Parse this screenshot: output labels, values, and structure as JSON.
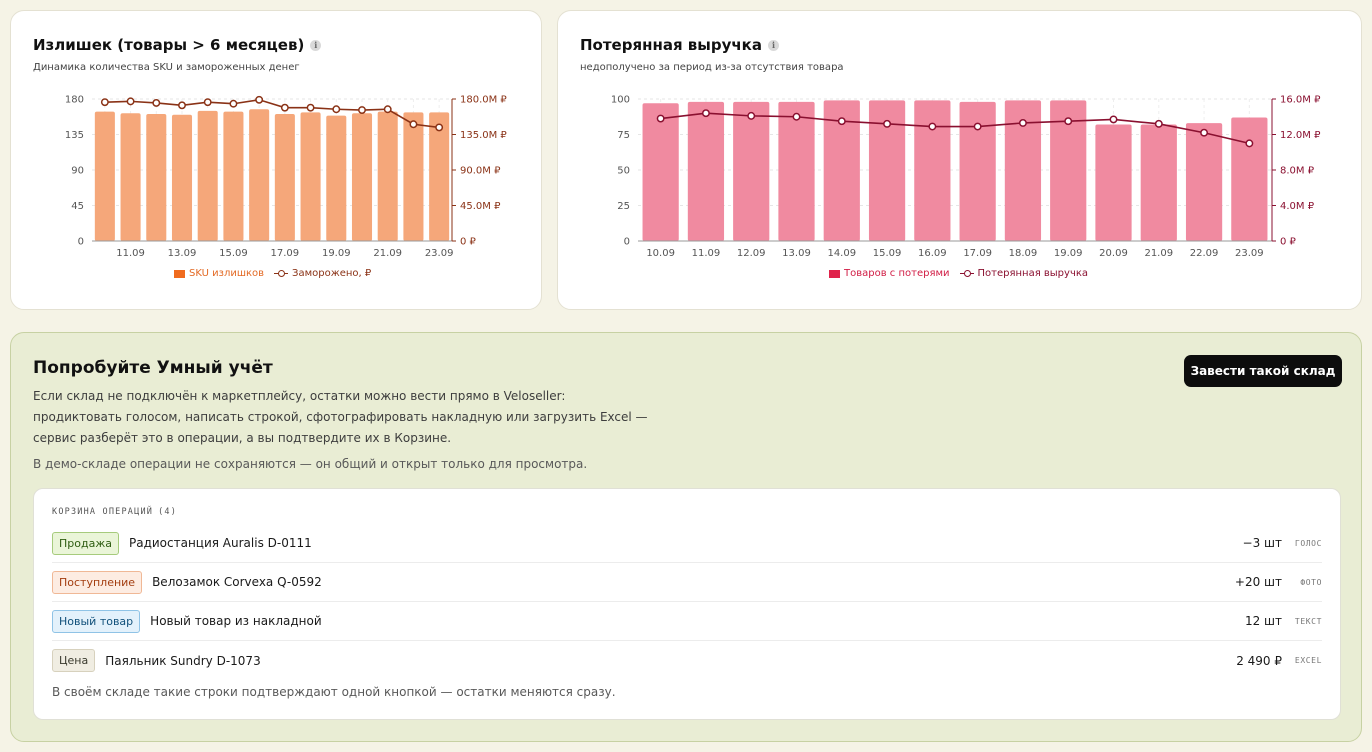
{
  "surplus_card": {
    "title": "Излишек (товары > 6 месяцев)",
    "subtitle": "Динамика количества SKU и замороженных денег",
    "legend_bar": "SKU излишков",
    "legend_line": "Заморожено, ₽",
    "info_icon": "i"
  },
  "lost_card": {
    "title": "Потерянная выручка",
    "subtitle": "недополучено за период из-за отсутствия товара",
    "legend_bar": "Товаров с потерями",
    "legend_line": "Потерянная выручка",
    "info_icon": "i"
  },
  "chart_data": [
    {
      "type": "bar",
      "title": "Излишек (товары > 6 месяцев)",
      "bar_color": "#f5a77a",
      "line_color": "#8a3216",
      "x_tick_labels": [
        "11.09",
        "13.09",
        "15.09",
        "17.09",
        "19.09",
        "21.09",
        "23.09"
      ],
      "series": [
        {
          "name": "SKU излишков",
          "type": "bar",
          "axis": "left",
          "values": [
            164,
            162,
            161,
            160,
            165,
            164,
            167,
            161,
            163,
            159,
            162,
            164,
            163,
            163
          ]
        },
        {
          "name": "Заморожено, ₽",
          "type": "line",
          "axis": "right",
          "values": [
            176,
            177,
            175,
            172,
            176,
            174,
            179,
            169,
            169,
            167,
            166,
            167,
            148,
            144
          ]
        }
      ],
      "y_left": {
        "ticks": [
          "0",
          "45",
          "90",
          "135",
          "180"
        ],
        "range": [
          0,
          180
        ]
      },
      "y_right": {
        "ticks": [
          "0 ₽",
          "45.0M ₽",
          "90.0M ₽",
          "135.0M ₽",
          "180.0M ₽"
        ],
        "range": [
          0,
          180
        ],
        "unit": "M ₽"
      },
      "grid": true,
      "legend": "bottom"
    },
    {
      "type": "bar",
      "title": "Потерянная выручка",
      "bar_color": "#f08aa0",
      "line_color": "#8a1030",
      "x_tick_labels": [
        "10.09",
        "11.09",
        "12.09",
        "13.09",
        "14.09",
        "15.09",
        "16.09",
        "17.09",
        "18.09",
        "19.09",
        "20.09",
        "21.09",
        "22.09",
        "23.09"
      ],
      "series": [
        {
          "name": "Товаров с потерями",
          "type": "bar",
          "axis": "left",
          "values": [
            97,
            98,
            98,
            98,
            99,
            99,
            99,
            98,
            99,
            99,
            82,
            82,
            83,
            87
          ]
        },
        {
          "name": "Потерянная выручка",
          "type": "line",
          "axis": "right",
          "values": [
            13.8,
            14.4,
            14.1,
            14.0,
            13.5,
            13.2,
            12.9,
            12.9,
            13.3,
            13.5,
            13.7,
            13.2,
            12.2,
            11.0
          ]
        }
      ],
      "y_left": {
        "ticks": [
          "0",
          "25",
          "50",
          "75",
          "100"
        ],
        "range": [
          0,
          100
        ]
      },
      "y_right": {
        "ticks": [
          "0 ₽",
          "4.0M ₽",
          "8.0M ₽",
          "12.0M ₽",
          "16.0M ₽"
        ],
        "range": [
          0,
          16
        ],
        "unit": "M ₽"
      },
      "grid": true,
      "legend": "bottom"
    }
  ],
  "promo": {
    "title": "Попробуйте Умный учёт",
    "text": "Если склад не подключён к маркетплейсу, остатки можно вести прямо в Veloseller: продиктовать голосом, написать строкой, сфотографировать накладную или загрузить Excel — сервис разберёт это в операции, а вы подтвердите их в Корзине.",
    "note": "В демо-складе операции не сохраняются — он общий и открыт только для просмотра.",
    "button_label": "Завести такой склад",
    "basket_title": "КОРЗИНА ОПЕРАЦИЙ",
    "basket_count": "(4)",
    "operations": [
      {
        "tag": "Продажа",
        "name": "Радиостанция Auralis D-0111",
        "qty": "−3 шт",
        "source": "ГОЛОС"
      },
      {
        "tag": "Поступление",
        "name": "Велозамок Corvexa Q-0592",
        "qty": "+20 шт",
        "source": "ФОТО"
      },
      {
        "tag": "Новый товар",
        "name": "Новый товар из накладной",
        "qty": "12 шт",
        "source": "ТЕКСТ"
      },
      {
        "tag": "Цена",
        "name": "Паяльник Sundry D-1073",
        "qty": "2 490 ₽",
        "source": "EXCEL"
      }
    ],
    "footer": "В своём складе такие строки подтверждают одной кнопкой — остатки меняются сразу."
  }
}
